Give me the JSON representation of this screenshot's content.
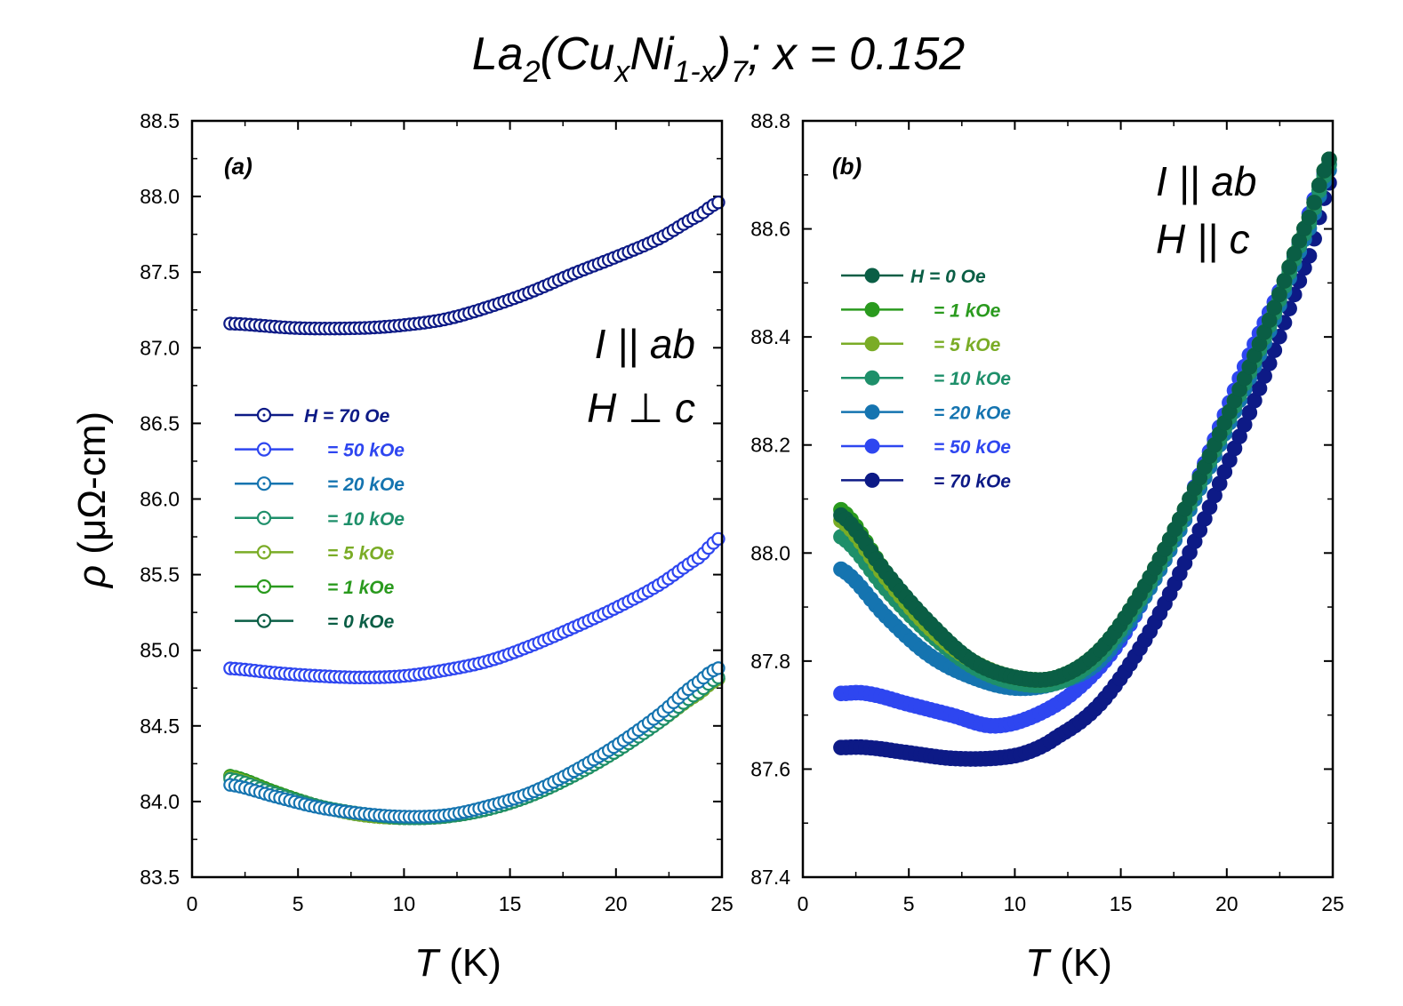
{
  "figure_title": {
    "prefix": "La",
    "sub1": "2",
    "mid1": "(Cu",
    "sub2": "x",
    "mid2": "Ni",
    "sub3": "1-x",
    "mid3": ")",
    "sub4": "7",
    "suffix": "; x = 0.152"
  },
  "colors": {
    "H0": "#0a5e45",
    "H1k": "#2a9a1e",
    "H5k": "#7aac26",
    "H10k": "#1e8f6a",
    "H20k": "#1574b0",
    "H50k": "#2e46f0",
    "H70k": "#0d1a86"
  },
  "chart_data": [
    {
      "panel": "a",
      "type": "scatter",
      "panel_label": "(a)",
      "annotation_line1": "I || ab",
      "annotation_line2": "H ⊥ c",
      "xlabel_italic": "T",
      "xlabel_unit": " (K)",
      "ylabel_symbol": "ρ",
      "ylabel_unit": " (μΩ-cm)",
      "xlim": [
        0,
        25
      ],
      "ylim": [
        83.5,
        88.5
      ],
      "xticks": [
        "0",
        "5",
        "10",
        "15",
        "20",
        "25"
      ],
      "yticks": [
        "83.5",
        "84.0",
        "84.5",
        "85.0",
        "85.5",
        "86.0",
        "86.5",
        "87.0",
        "87.5",
        "88.0",
        "88.5"
      ],
      "marker": "open-circle",
      "legend_position": "center-left",
      "series": [
        {
          "name": "H = 70 Oe",
          "color_key": "H70k",
          "x": [
            1.8,
            5,
            8,
            10,
            12,
            14,
            16,
            18,
            20,
            22,
            24,
            25
          ],
          "y": [
            87.16,
            87.13,
            87.13,
            87.15,
            87.19,
            87.27,
            87.37,
            87.49,
            87.6,
            87.72,
            87.88,
            87.97
          ]
        },
        {
          "name": "= 50 kOe",
          "color_key": "H50k",
          "x": [
            1.8,
            4,
            6,
            8,
            10,
            12,
            14,
            16,
            18,
            20,
            22,
            24,
            25
          ],
          "y": [
            84.88,
            84.85,
            84.83,
            84.82,
            84.83,
            84.87,
            84.93,
            85.03,
            85.15,
            85.28,
            85.43,
            85.62,
            85.75
          ]
        },
        {
          "name": "= 20 kOe",
          "color_key": "H20k",
          "x": [
            1.8,
            4,
            6,
            8,
            10,
            12,
            14,
            16,
            18,
            20,
            22,
            24,
            25
          ],
          "y": [
            84.11,
            84.03,
            83.96,
            83.92,
            83.9,
            83.91,
            83.97,
            84.06,
            84.2,
            84.37,
            84.57,
            84.8,
            84.89
          ]
        },
        {
          "name": "= 10 kOe",
          "color_key": "H10k",
          "x": [
            1.8,
            4,
            6,
            8,
            10,
            12,
            14,
            16,
            18,
            20,
            22,
            24,
            25
          ],
          "y": [
            84.15,
            84.05,
            83.97,
            83.92,
            83.89,
            83.9,
            83.95,
            84.04,
            84.17,
            84.33,
            84.52,
            84.73,
            84.83
          ]
        },
        {
          "name": "= 5 kOe",
          "color_key": "H5k",
          "x": [
            1.8,
            4,
            6,
            8,
            10,
            12,
            14,
            16,
            18,
            20,
            22,
            24,
            25
          ],
          "y": [
            84.16,
            84.05,
            83.97,
            83.91,
            83.89,
            83.9,
            83.95,
            84.04,
            84.17,
            84.33,
            84.52,
            84.72,
            84.82
          ]
        },
        {
          "name": "= 1 kOe",
          "color_key": "H1k",
          "x": [
            1.8,
            4,
            6,
            8,
            10,
            12,
            14,
            16,
            18,
            20,
            22,
            24,
            25
          ],
          "y": [
            84.17,
            84.06,
            83.97,
            83.91,
            83.89,
            83.9,
            83.95,
            84.04,
            84.17,
            84.33,
            84.52,
            84.72,
            84.82
          ]
        },
        {
          "name": "= 0 kOe",
          "color_key": "H0",
          "x": [
            1.8,
            4,
            6,
            8,
            10,
            12,
            14,
            16,
            18,
            20,
            22,
            24,
            25
          ],
          "y": [
            84.17,
            84.06,
            83.97,
            83.91,
            83.89,
            83.9,
            83.95,
            84.04,
            84.17,
            84.33,
            84.52,
            84.72,
            84.82
          ]
        }
      ]
    },
    {
      "panel": "b",
      "type": "scatter",
      "panel_label": "(b)",
      "annotation_line1": "I || ab",
      "annotation_line2": "H || c",
      "xlabel_italic": "T",
      "xlabel_unit": " (K)",
      "xlim": [
        0,
        25
      ],
      "ylim": [
        87.4,
        88.8
      ],
      "xticks": [
        "0",
        "5",
        "10",
        "15",
        "20",
        "25"
      ],
      "yticks": [
        "87.4",
        "87.6",
        "87.8",
        "88.0",
        "88.2",
        "88.4",
        "88.6",
        "88.8"
      ],
      "marker": "filled-circle",
      "legend_position": "upper-left",
      "series": [
        {
          "name": "H = 0 Oe",
          "color_key": "H0",
          "x": [
            1.8,
            4,
            6,
            8,
            10,
            12,
            14,
            16,
            18,
            20,
            22,
            24,
            25
          ],
          "y": [
            88.07,
            87.96,
            87.87,
            87.8,
            87.77,
            87.77,
            87.82,
            87.93,
            88.08,
            88.25,
            88.43,
            88.63,
            88.74
          ]
        },
        {
          "name": "= 1 kOe",
          "color_key": "H1k",
          "x": [
            1.8,
            4,
            6,
            8,
            10,
            12,
            14,
            16,
            18,
            20,
            22,
            24,
            25
          ],
          "y": [
            88.08,
            87.96,
            87.87,
            87.8,
            87.77,
            87.77,
            87.82,
            87.93,
            88.08,
            88.25,
            88.43,
            88.63,
            88.74
          ]
        },
        {
          "name": "= 5 kOe",
          "color_key": "H5k",
          "x": [
            1.8,
            4,
            6,
            8,
            10,
            12,
            14,
            16,
            18,
            20,
            22,
            24,
            25
          ],
          "y": [
            88.06,
            87.95,
            87.86,
            87.8,
            87.77,
            87.77,
            87.82,
            87.93,
            88.08,
            88.25,
            88.43,
            88.63,
            88.74
          ]
        },
        {
          "name": "= 10 kOe",
          "color_key": "H10k",
          "x": [
            1.8,
            4,
            6,
            8,
            10,
            12,
            14,
            16,
            18,
            20,
            22,
            24,
            25
          ],
          "y": [
            88.03,
            87.93,
            87.85,
            87.79,
            87.76,
            87.76,
            87.81,
            87.92,
            88.07,
            88.24,
            88.42,
            88.62,
            88.73
          ]
        },
        {
          "name": "= 20 kOe",
          "color_key": "H20k",
          "x": [
            1.8,
            4,
            6,
            8,
            10,
            12,
            14,
            16,
            18,
            20,
            22,
            24,
            25
          ],
          "y": [
            87.97,
            87.88,
            87.81,
            87.77,
            87.75,
            87.76,
            87.8,
            87.91,
            88.06,
            88.23,
            88.41,
            88.61,
            88.72
          ]
        },
        {
          "name": "= 50 kOe",
          "color_key": "H50k",
          "x": [
            1.8,
            3,
            5,
            7,
            9,
            11,
            13,
            15,
            17,
            19,
            21,
            23,
            25
          ],
          "y": [
            87.74,
            87.74,
            87.72,
            87.7,
            87.68,
            87.7,
            87.75,
            87.84,
            87.99,
            88.17,
            88.36,
            88.53,
            88.73
          ]
        },
        {
          "name": "= 70 kOe",
          "color_key": "H70k",
          "x": [
            1.8,
            3,
            5,
            7,
            9,
            10.5,
            12,
            14,
            16,
            18,
            20,
            22,
            24,
            25
          ],
          "y": [
            87.64,
            87.64,
            87.63,
            87.62,
            87.62,
            87.63,
            87.66,
            87.72,
            87.83,
            87.98,
            88.16,
            88.35,
            88.56,
            88.7
          ]
        }
      ]
    }
  ]
}
